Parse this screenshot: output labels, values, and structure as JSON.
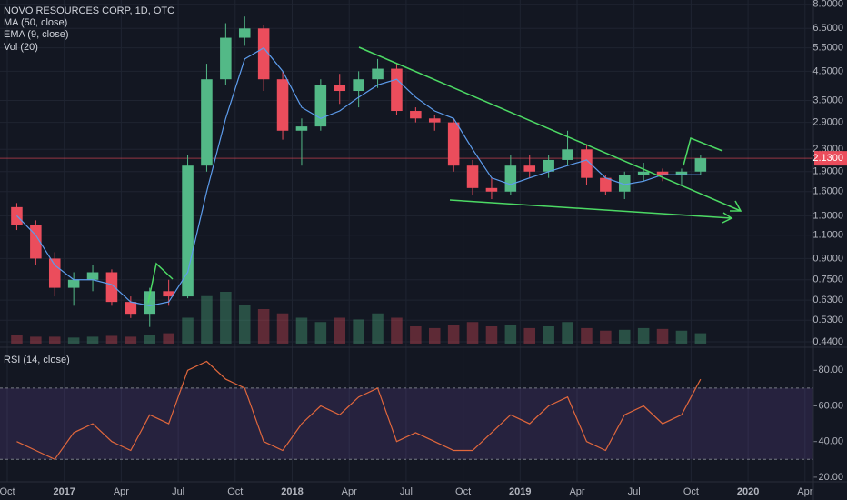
{
  "chart_data": {
    "type": "candlestick",
    "title": "NOVO RESOURCES CORP, 1D, OTC",
    "indicators": [
      "MA (50, close)",
      "EMA (9, close)",
      "Vol (20)"
    ],
    "rsi_title": "RSI (14, close)",
    "log_scale": true,
    "grid": true,
    "up_color": "#53b987",
    "down_color": "#eb4d5c",
    "ma_color": "#5d9cec",
    "rsi_color": "#e0673c",
    "x": [
      "2016-10",
      "2016-11",
      "2016-12",
      "2017-01",
      "2017-02",
      "2017-03",
      "2017-04",
      "2017-05",
      "2017-06",
      "2017-07",
      "2017-08",
      "2017-09",
      "2017-10",
      "2017-11",
      "2017-12",
      "2018-01",
      "2018-02",
      "2018-03",
      "2018-04",
      "2018-05",
      "2018-06",
      "2018-07",
      "2018-08",
      "2018-09",
      "2018-10",
      "2018-11",
      "2018-12",
      "2019-01",
      "2019-02",
      "2019-03",
      "2019-04",
      "2019-05",
      "2019-06",
      "2019-07",
      "2019-08",
      "2019-09",
      "2019-10"
    ],
    "open": [
      1.4,
      1.2,
      0.9,
      0.7,
      0.75,
      0.8,
      0.62,
      0.56,
      0.68,
      0.65,
      2.0,
      4.2,
      6.0,
      6.5,
      4.2,
      2.7,
      2.8,
      4.0,
      3.8,
      4.2,
      4.6,
      3.2,
      3.0,
      2.9,
      2.0,
      1.65,
      1.6,
      2.0,
      1.9,
      2.1,
      2.3,
      1.8,
      1.6,
      1.85,
      1.9,
      1.85,
      1.9
    ],
    "high": [
      1.45,
      1.25,
      0.95,
      0.8,
      0.85,
      0.82,
      0.65,
      0.7,
      0.75,
      2.2,
      4.8,
      6.8,
      7.2,
      6.7,
      4.5,
      3.0,
      4.2,
      4.4,
      4.5,
      5.0,
      4.8,
      3.3,
      3.1,
      3.0,
      2.1,
      1.8,
      2.2,
      2.2,
      2.2,
      2.7,
      2.4,
      1.85,
      1.9,
      2.05,
      1.95,
      1.95,
      2.2
    ],
    "low": [
      1.15,
      0.85,
      0.65,
      0.6,
      0.68,
      0.6,
      0.54,
      0.5,
      0.6,
      0.64,
      1.9,
      4.0,
      5.6,
      3.8,
      2.5,
      2.0,
      2.7,
      3.4,
      3.3,
      3.9,
      3.1,
      2.9,
      2.7,
      1.9,
      1.55,
      1.5,
      1.55,
      1.8,
      1.8,
      2.0,
      1.7,
      1.55,
      1.5,
      1.75,
      1.75,
      1.7,
      1.85
    ],
    "close": [
      1.2,
      0.9,
      0.7,
      0.75,
      0.8,
      0.62,
      0.56,
      0.68,
      0.65,
      2.0,
      4.2,
      6.0,
      6.5,
      4.2,
      2.7,
      2.8,
      4.0,
      3.8,
      4.2,
      4.6,
      3.2,
      3.0,
      2.9,
      2.0,
      1.65,
      1.6,
      2.0,
      1.9,
      2.1,
      2.3,
      1.8,
      1.6,
      1.85,
      1.9,
      1.85,
      1.9,
      2.13
    ],
    "ma": [
      1.3,
      1.1,
      0.85,
      0.75,
      0.75,
      0.72,
      0.62,
      0.6,
      0.62,
      0.8,
      1.6,
      3.0,
      5.0,
      5.5,
      4.5,
      3.3,
      3.0,
      3.2,
      3.6,
      4.0,
      4.2,
      3.6,
      3.2,
      3.0,
      2.3,
      1.8,
      1.7,
      1.8,
      1.9,
      2.0,
      2.1,
      1.8,
      1.7,
      1.75,
      1.85,
      1.85,
      1.85
    ],
    "volume": [
      10,
      8,
      8,
      7,
      8,
      9,
      8,
      10,
      12,
      30,
      55,
      60,
      45,
      40,
      35,
      30,
      25,
      30,
      28,
      35,
      30,
      20,
      18,
      22,
      25,
      20,
      22,
      18,
      20,
      25,
      18,
      15,
      16,
      18,
      17,
      15,
      12
    ],
    "vlim": [
      0,
      100
    ],
    "rsi": [
      40,
      35,
      30,
      45,
      50,
      40,
      35,
      55,
      50,
      80,
      85,
      75,
      70,
      40,
      35,
      50,
      60,
      55,
      65,
      70,
      40,
      45,
      40,
      35,
      35,
      45,
      55,
      50,
      60,
      65,
      40,
      35,
      55,
      60,
      50,
      55,
      75
    ],
    "rsi_lim": [
      17.4,
      92.4
    ],
    "rsi_band": [
      30,
      70
    ],
    "rsi_ticks": [
      {
        "value": 20,
        "label": "20.00"
      },
      {
        "value": 40,
        "label": "40.00"
      },
      {
        "value": 60,
        "label": "60.00"
      },
      {
        "value": 80,
        "label": "80.00"
      }
    ],
    "ylim": [
      0.42,
      8.3
    ],
    "yticks": [
      {
        "value": 0.44,
        "label": "0.4400"
      },
      {
        "value": 0.53,
        "label": "0.5300"
      },
      {
        "value": 0.63,
        "label": "0.6300"
      },
      {
        "value": 0.75,
        "label": "0.7500"
      },
      {
        "value": 0.9,
        "label": "0.9000"
      },
      {
        "value": 1.1,
        "label": "1.1000"
      },
      {
        "value": 1.3,
        "label": "1.3000"
      },
      {
        "value": 1.6,
        "label": "1.6000"
      },
      {
        "value": 1.9,
        "label": "1.9000"
      },
      {
        "value": 2.3,
        "label": "2.3000"
      },
      {
        "value": 2.9,
        "label": "2.9000"
      },
      {
        "value": 3.5,
        "label": "3.5000"
      },
      {
        "value": 4.5,
        "label": "4.5000"
      },
      {
        "value": 5.5,
        "label": "5.5000"
      },
      {
        "value": 6.5,
        "label": "6.5000"
      },
      {
        "value": 8.0,
        "label": "8.0000"
      }
    ],
    "last_price": {
      "value": 2.13,
      "label": "2.1300"
    },
    "xticks": [
      {
        "value": "2016-10",
        "label": "Oct"
      },
      {
        "value": "2017-01",
        "label": "2017"
      },
      {
        "value": "2017-04",
        "label": "Apr"
      },
      {
        "value": "2017-07",
        "label": "Jul"
      },
      {
        "value": "2017-10",
        "label": "Oct"
      },
      {
        "value": "2018-01",
        "label": "2018"
      },
      {
        "value": "2018-04",
        "label": "Apr"
      },
      {
        "value": "2018-07",
        "label": "Jul"
      },
      {
        "value": "2018-10",
        "label": "Oct"
      },
      {
        "value": "2019-01",
        "label": "2019"
      },
      {
        "value": "2019-04",
        "label": "Apr"
      },
      {
        "value": "2019-07",
        "label": "Jul"
      },
      {
        "value": "2019-10",
        "label": "Oct"
      },
      {
        "value": "2020-01",
        "label": "2020"
      },
      {
        "value": "2020-04",
        "label": "Apr"
      }
    ]
  }
}
